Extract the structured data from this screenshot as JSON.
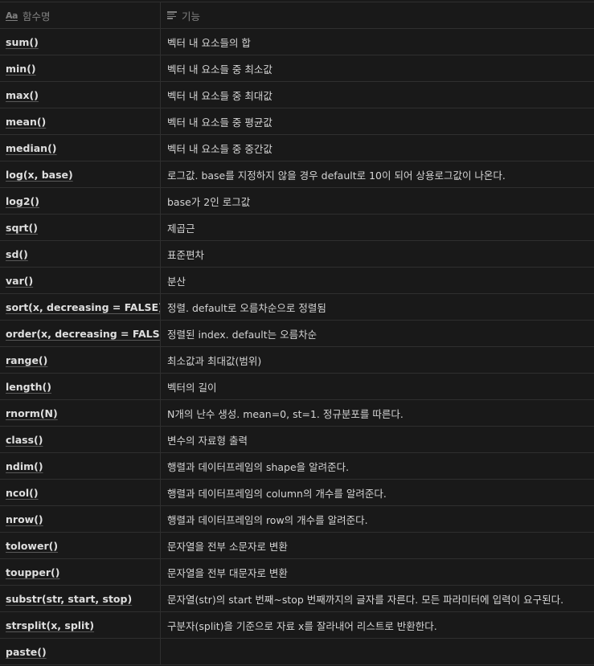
{
  "header": {
    "name_icon": "Aa",
    "name_label": "함수명",
    "desc_icon": "text-lines-icon",
    "desc_label": "기능"
  },
  "rows": [
    {
      "name": "sum()",
      "desc": "벡터 내 요소들의 합"
    },
    {
      "name": "min()",
      "desc": "벡터 내 요소들 중 최소값"
    },
    {
      "name": "max()",
      "desc": "벡터 내 요소들 중 최대값"
    },
    {
      "name": "mean()",
      "desc": "벡터 내 요소들 중 평균값"
    },
    {
      "name": "median()",
      "desc": "벡터 내 요소들 중 중간값"
    },
    {
      "name": "log(x, base)",
      "desc": "로그값. base를 지정하지 않을 경우 default로 10이 되어 상용로그값이 나온다."
    },
    {
      "name": "log2()",
      "desc": "base가 2인 로그값"
    },
    {
      "name": "sqrt()",
      "desc": "제곱근"
    },
    {
      "name": "sd()",
      "desc": "표준편차"
    },
    {
      "name": "var()",
      "desc": "분산"
    },
    {
      "name": "sort(x, decreasing = FALSE)",
      "desc": "정렬. default로 오름차순으로 정렬됨"
    },
    {
      "name": "order(x, decreasing = FALSE)",
      "desc": "정렬된 index. default는 오름차순"
    },
    {
      "name": "range()",
      "desc": "최소값과 최대값(범위)"
    },
    {
      "name": "length()",
      "desc": "벡터의 길이"
    },
    {
      "name": "rnorm(N)",
      "desc": "N개의 난수 생성. mean=0, st=1. 정규분포를 따른다."
    },
    {
      "name": "class()",
      "desc": "변수의 자료형 출력"
    },
    {
      "name": "ndim()",
      "desc": "행렬과 데이터프레임의 shape을 알려준다."
    },
    {
      "name": "ncol()",
      "desc": "행렬과 데이터프레임의 column의 개수를 알려준다."
    },
    {
      "name": "nrow()",
      "desc": "행렬과 데이터프레임의 row의 개수를 알려준다."
    },
    {
      "name": "tolower()",
      "desc": "문자열을 전부 소문자로 변환"
    },
    {
      "name": "toupper()",
      "desc": "문자열을 전부 대문자로 변환"
    },
    {
      "name": "substr(str, start, stop)",
      "desc": "문자열(str)의 start 번째~stop 번째까지의 글자를 자른다. 모든 파라미터에 입력이 요구된다."
    },
    {
      "name": "strsplit(x, split)",
      "desc": "구분자(split)을 기준으로 자료 x를 잘라내어 리스트로 반환한다."
    },
    {
      "name": "paste()",
      "desc": ""
    }
  ]
}
